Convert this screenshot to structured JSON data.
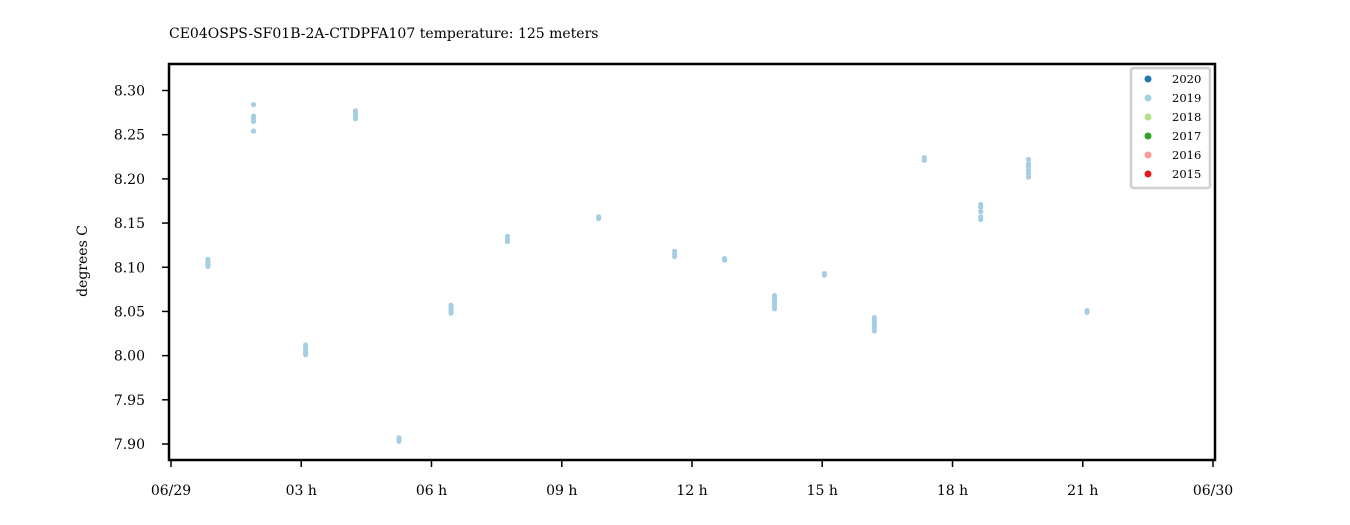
{
  "chart_data": {
    "type": "scatter",
    "title": "CE04OSPS-SF01B-2A-CTDPFA107 temperature: 125 meters",
    "xlabel": "",
    "ylabel": "degrees C",
    "xlim": [
      0,
      24
    ],
    "ylim": [
      7.88,
      8.33
    ],
    "x_unit": "hours",
    "x_ticks": [
      {
        "hour": 0,
        "label": "06/29"
      },
      {
        "hour": 3,
        "label": "03 h"
      },
      {
        "hour": 6,
        "label": "06 h"
      },
      {
        "hour": 9,
        "label": "09 h"
      },
      {
        "hour": 12,
        "label": "12 h"
      },
      {
        "hour": 15,
        "label": "15 h"
      },
      {
        "hour": 18,
        "label": "18 h"
      },
      {
        "hour": 21,
        "label": "21 h"
      },
      {
        "hour": 24,
        "label": "06/30"
      }
    ],
    "y_ticks": [
      {
        "value": 7.9,
        "label": "7.90"
      },
      {
        "value": 7.95,
        "label": "7.95"
      },
      {
        "value": 8.0,
        "label": "8.00"
      },
      {
        "value": 8.05,
        "label": "8.05"
      },
      {
        "value": 8.1,
        "label": "8.10"
      },
      {
        "value": 8.15,
        "label": "8.15"
      },
      {
        "value": 8.2,
        "label": "8.20"
      },
      {
        "value": 8.25,
        "label": "8.25"
      },
      {
        "value": 8.3,
        "label": "8.30"
      }
    ],
    "legend": {
      "placement": "top-right",
      "entries": [
        {
          "name": "2020",
          "color": "#1f78b4"
        },
        {
          "name": "2019",
          "color": "#a6cee3"
        },
        {
          "name": "2018",
          "color": "#b2df8a"
        },
        {
          "name": "2017",
          "color": "#33a02c"
        },
        {
          "name": "2016",
          "color": "#fb9a99"
        },
        {
          "name": "2015",
          "color": "#e31a1c"
        }
      ]
    },
    "series": [
      {
        "name": "2019",
        "color": "#a6cee3",
        "points": [
          {
            "x": 0.85,
            "y": 8.101
          },
          {
            "x": 0.85,
            "y": 8.103
          },
          {
            "x": 0.85,
            "y": 8.105
          },
          {
            "x": 0.85,
            "y": 8.107
          },
          {
            "x": 0.85,
            "y": 8.109
          },
          {
            "x": 1.9,
            "y": 8.284
          },
          {
            "x": 1.9,
            "y": 8.271
          },
          {
            "x": 1.9,
            "y": 8.268
          },
          {
            "x": 1.9,
            "y": 8.265
          },
          {
            "x": 1.9,
            "y": 8.254
          },
          {
            "x": 3.1,
            "y": 8.001
          },
          {
            "x": 3.1,
            "y": 8.003
          },
          {
            "x": 3.1,
            "y": 8.006
          },
          {
            "x": 3.1,
            "y": 8.009
          },
          {
            "x": 3.1,
            "y": 8.012
          },
          {
            "x": 4.25,
            "y": 8.277
          },
          {
            "x": 4.25,
            "y": 8.274
          },
          {
            "x": 4.25,
            "y": 8.271
          },
          {
            "x": 4.25,
            "y": 8.268
          },
          {
            "x": 5.25,
            "y": 7.903
          },
          {
            "x": 5.25,
            "y": 7.905
          },
          {
            "x": 5.25,
            "y": 7.907
          },
          {
            "x": 6.45,
            "y": 8.048
          },
          {
            "x": 6.45,
            "y": 8.051
          },
          {
            "x": 6.45,
            "y": 8.054
          },
          {
            "x": 6.45,
            "y": 8.057
          },
          {
            "x": 7.75,
            "y": 8.129
          },
          {
            "x": 7.75,
            "y": 8.132
          },
          {
            "x": 7.75,
            "y": 8.135
          },
          {
            "x": 9.85,
            "y": 8.155
          },
          {
            "x": 9.85,
            "y": 8.157
          },
          {
            "x": 11.6,
            "y": 8.112
          },
          {
            "x": 11.6,
            "y": 8.115
          },
          {
            "x": 11.6,
            "y": 8.118
          },
          {
            "x": 12.75,
            "y": 8.108
          },
          {
            "x": 12.75,
            "y": 8.11
          },
          {
            "x": 13.9,
            "y": 8.053
          },
          {
            "x": 13.9,
            "y": 8.056
          },
          {
            "x": 13.9,
            "y": 8.059
          },
          {
            "x": 13.9,
            "y": 8.062
          },
          {
            "x": 13.9,
            "y": 8.065
          },
          {
            "x": 13.9,
            "y": 8.068
          },
          {
            "x": 15.05,
            "y": 8.091
          },
          {
            "x": 15.05,
            "y": 8.093
          },
          {
            "x": 16.2,
            "y": 8.028
          },
          {
            "x": 16.2,
            "y": 8.031
          },
          {
            "x": 16.2,
            "y": 8.034
          },
          {
            "x": 16.2,
            "y": 8.037
          },
          {
            "x": 16.2,
            "y": 8.04
          },
          {
            "x": 16.2,
            "y": 8.043
          },
          {
            "x": 17.35,
            "y": 8.221
          },
          {
            "x": 17.35,
            "y": 8.224
          },
          {
            "x": 18.65,
            "y": 8.154
          },
          {
            "x": 18.65,
            "y": 8.157
          },
          {
            "x": 18.65,
            "y": 8.163
          },
          {
            "x": 18.65,
            "y": 8.168
          },
          {
            "x": 18.65,
            "y": 8.171
          },
          {
            "x": 19.75,
            "y": 8.202
          },
          {
            "x": 19.75,
            "y": 8.206
          },
          {
            "x": 19.75,
            "y": 8.21
          },
          {
            "x": 19.75,
            "y": 8.214
          },
          {
            "x": 19.75,
            "y": 8.217
          },
          {
            "x": 19.75,
            "y": 8.222
          },
          {
            "x": 21.1,
            "y": 8.049
          },
          {
            "x": 21.1,
            "y": 8.051
          }
        ]
      }
    ]
  }
}
